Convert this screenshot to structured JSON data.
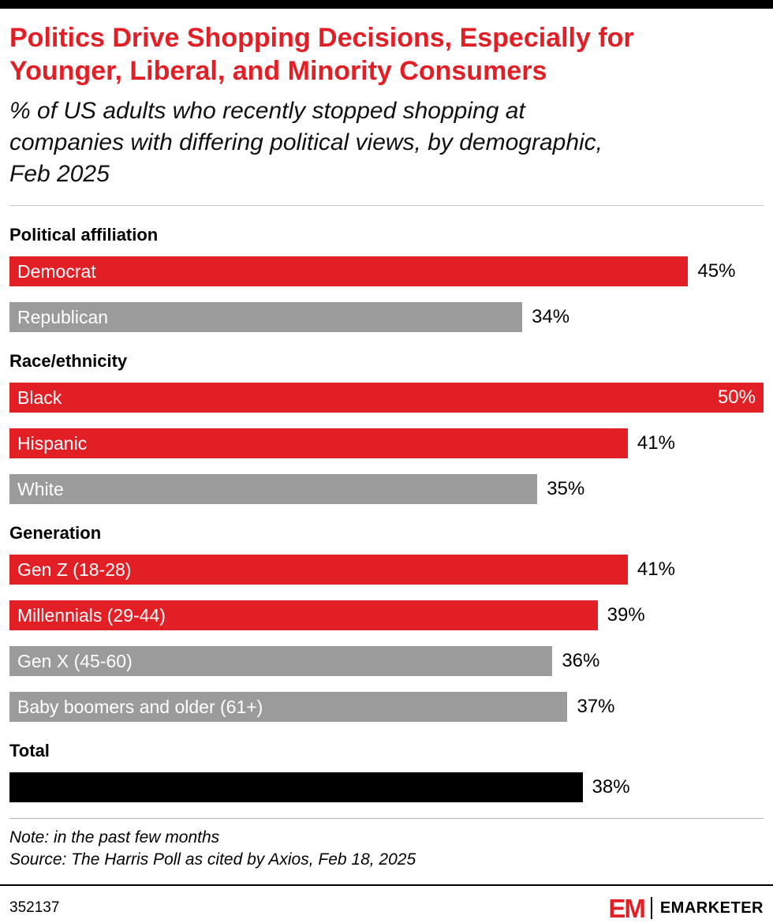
{
  "footer": {
    "chart_id": "352137",
    "logo_mark": "EM",
    "brand": "EMARKETER"
  },
  "colors": {
    "red": "#e31f26",
    "gray": "#9b9b9b",
    "black": "#000000"
  },
  "chart_data": {
    "type": "bar",
    "orientation": "horizontal",
    "title": "Politics Drive Shopping Decisions, Especially for Younger, Liberal, and Minority Consumers",
    "subtitle": "% of US adults who recently stopped shopping at companies with differing political views, by demographic, Feb 2025",
    "note": "Note: in the past few months",
    "source": "Source: The Harris Poll as cited by Axios, Feb 18, 2025",
    "unit": "%",
    "xlim": [
      0,
      50
    ],
    "value_labels": "end",
    "grid": false,
    "legend": false,
    "groups": [
      {
        "label": "Political affiliation",
        "bars": [
          {
            "label": "Democrat",
            "value": 45,
            "color": "red"
          },
          {
            "label": "Republican",
            "value": 34,
            "color": "gray"
          }
        ]
      },
      {
        "label": "Race/ethnicity",
        "bars": [
          {
            "label": "Black",
            "value": 50,
            "color": "red"
          },
          {
            "label": "Hispanic",
            "value": 41,
            "color": "red"
          },
          {
            "label": "White",
            "value": 35,
            "color": "gray"
          }
        ]
      },
      {
        "label": "Generation",
        "bars": [
          {
            "label": "Gen Z (18-28)",
            "value": 41,
            "color": "red"
          },
          {
            "label": "Millennials (29-44)",
            "value": 39,
            "color": "red"
          },
          {
            "label": "Gen X (45-60)",
            "value": 36,
            "color": "gray"
          },
          {
            "label": "Baby boomers and older (61+)",
            "value": 37,
            "color": "gray"
          }
        ]
      },
      {
        "label": "Total",
        "bars": [
          {
            "label": "",
            "value": 38,
            "color": "black"
          }
        ]
      }
    ]
  }
}
